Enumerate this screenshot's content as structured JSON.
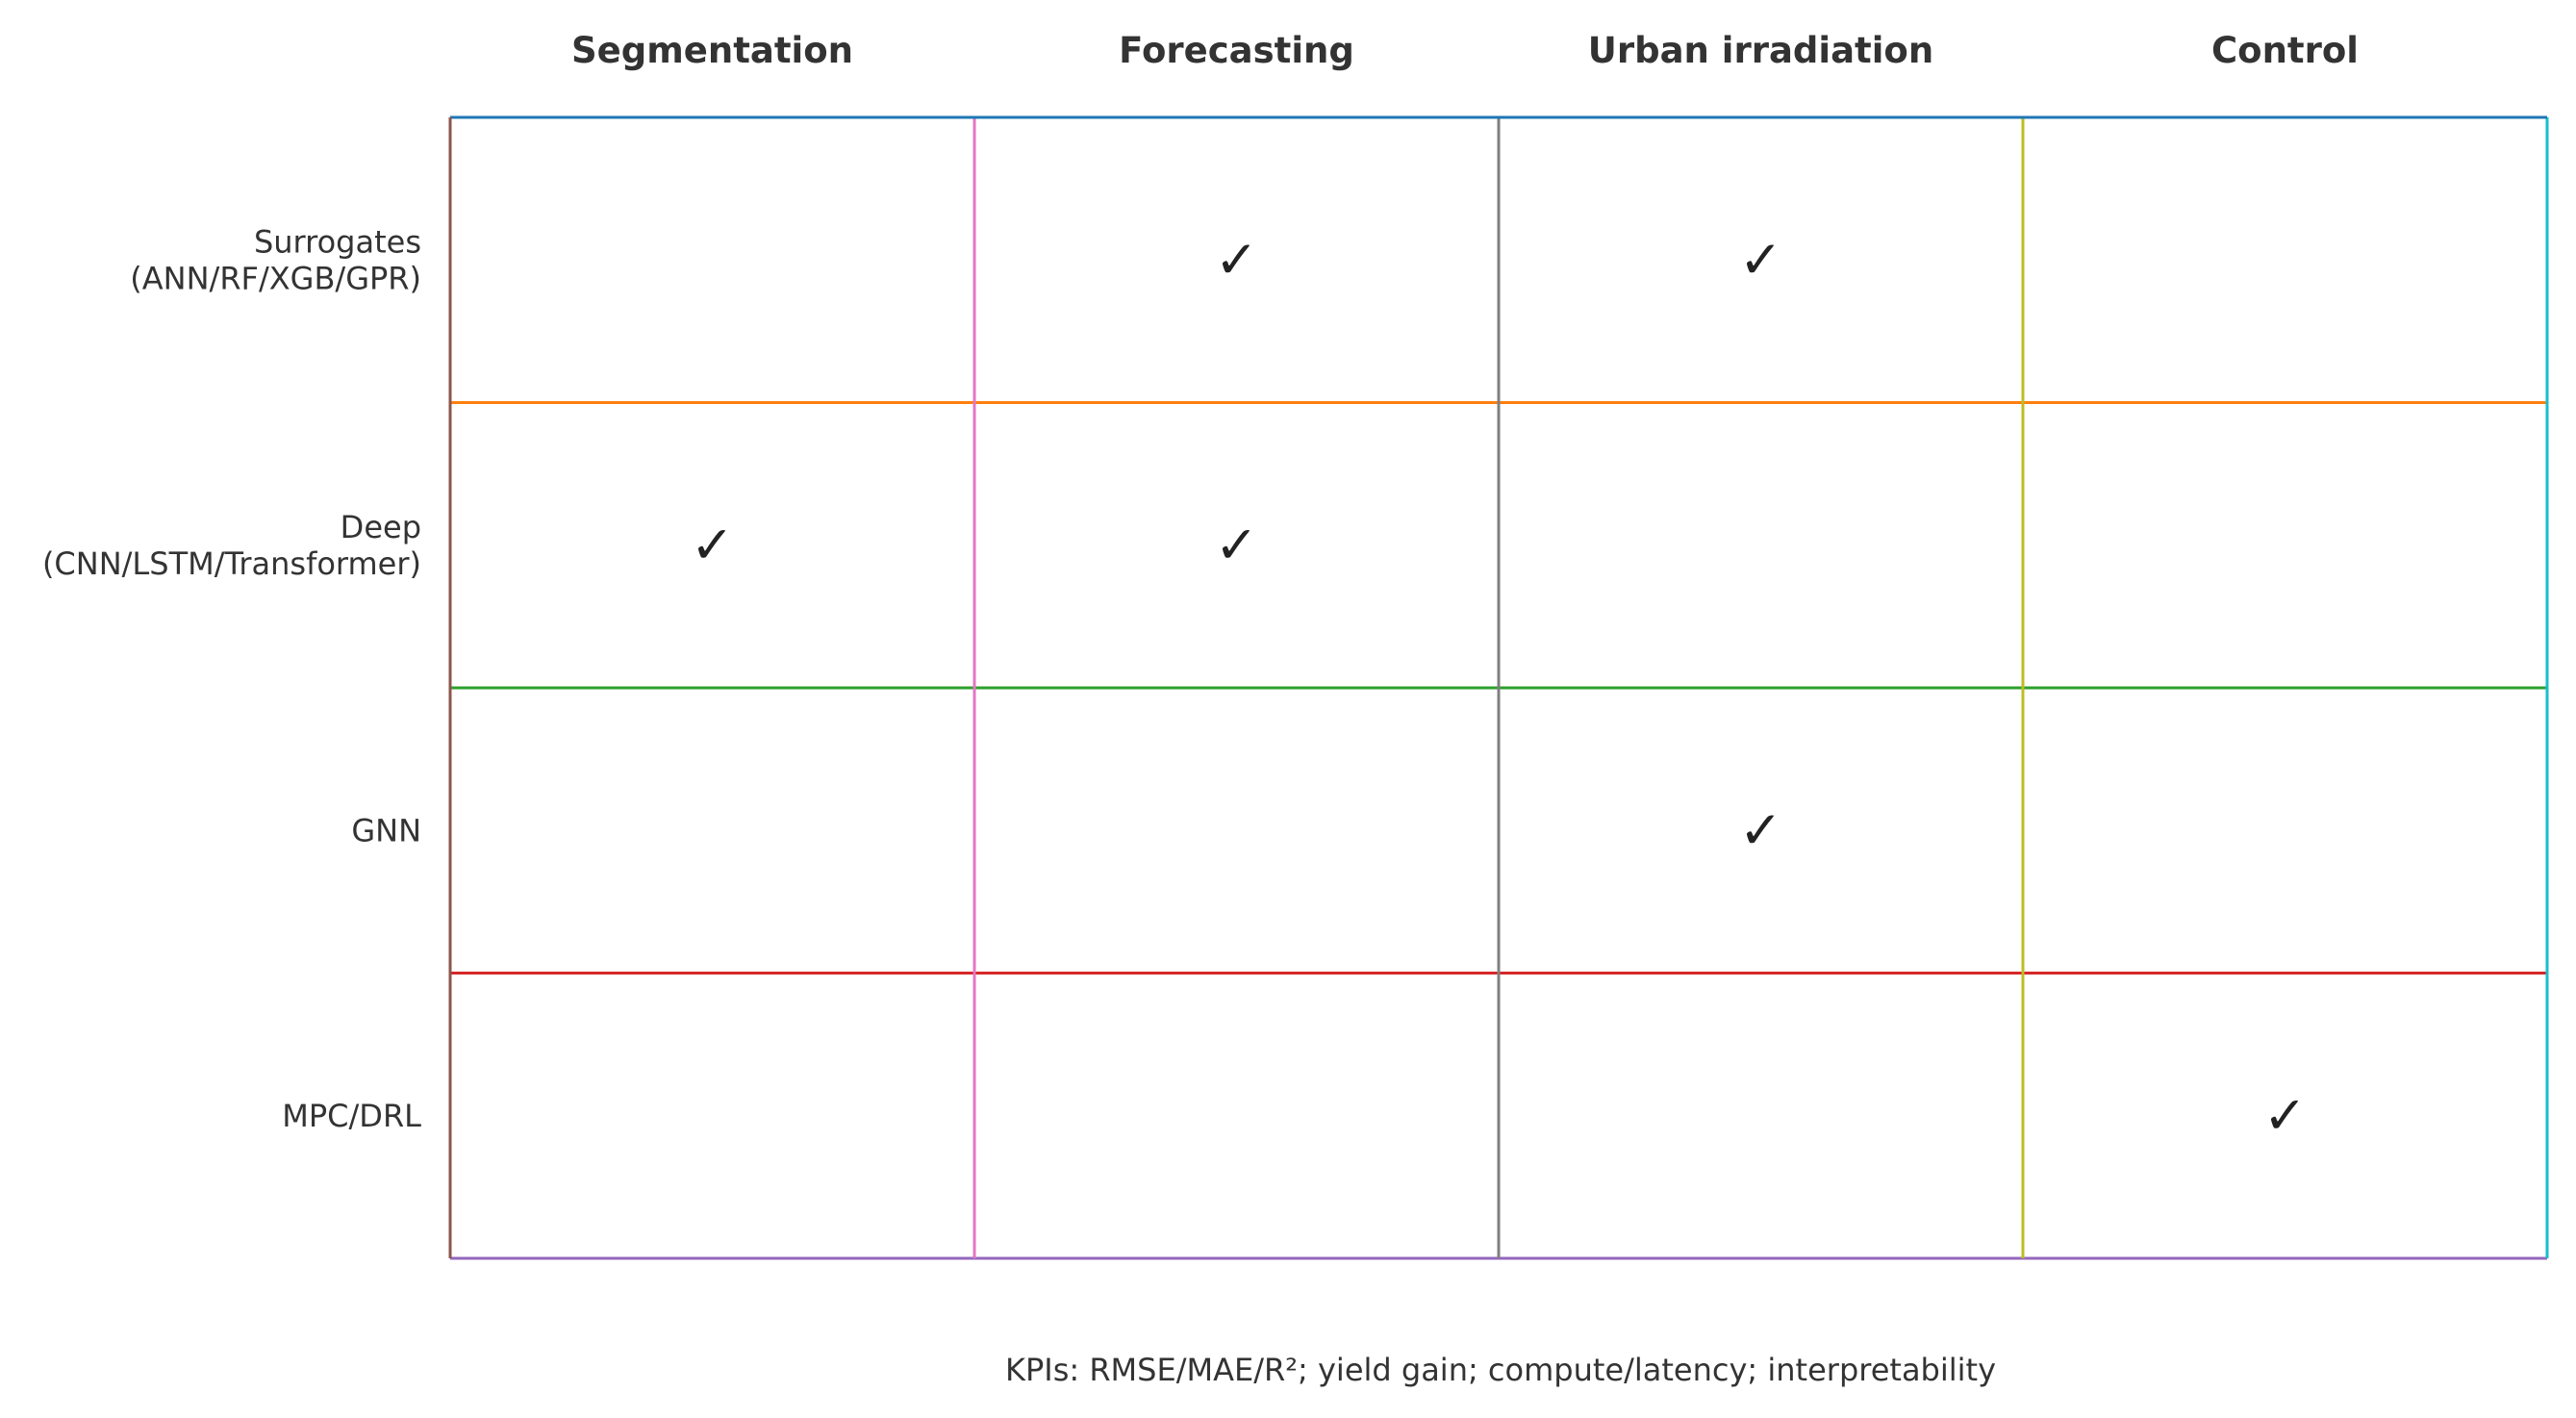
{
  "columns": [
    {
      "label": "Segmentation",
      "color": "#e377c2"
    },
    {
      "label": "Forecasting",
      "color": "#7f7f7f"
    },
    {
      "label": "Urban irradiation",
      "color": "#bcbd22"
    },
    {
      "label": "Control",
      "color": "#17becf"
    }
  ],
  "rows": [
    {
      "lines": [
        "Surrogates",
        "(ANN/RF/XGB/GPR)"
      ],
      "color": "#ff7f0e",
      "checks": [
        false,
        true,
        true,
        false
      ]
    },
    {
      "lines": [
        "Deep",
        "(CNN/LSTM/Transformer)"
      ],
      "color": "#2ca02c",
      "checks": [
        true,
        true,
        false,
        false
      ]
    },
    {
      "lines": [
        "GNN"
      ],
      "color": "#d62728",
      "checks": [
        false,
        false,
        true,
        false
      ]
    },
    {
      "lines": [
        "MPC/DRL"
      ],
      "color": "#9467bd",
      "checks": [
        false,
        false,
        false,
        true
      ]
    }
  ],
  "border_colors": {
    "top": "#1f77b4",
    "left": "#8c564b"
  },
  "check_symbol": "✓",
  "caption": "KPIs: RMSE/MAE/R²; yield gain; compute/latency; interpretability"
}
